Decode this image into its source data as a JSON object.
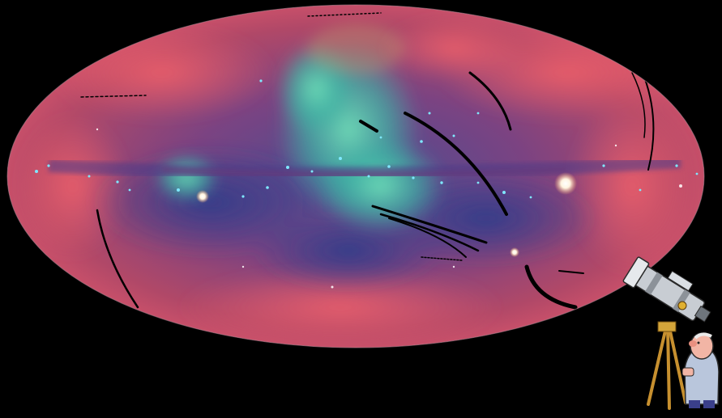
{
  "image": {
    "subject": "all-sky-map",
    "projection": "Aitoff ellipse",
    "background_color": "#000000",
    "palette": {
      "outer_red": "#d24d5e",
      "magenta": "#9a3e78",
      "violet_blue": "#55508e",
      "deep_blue": "#2f3c86",
      "cyan_green": "#5fd6b0",
      "teal": "#3bb5a6",
      "hot_white": "#ffffff",
      "star_cyan": "#7fe8ff"
    },
    "clipart": {
      "subject": "astronomer-with-telescope",
      "icons": [
        "telescope-icon",
        "tripod-icon",
        "astronomer-icon"
      ]
    }
  }
}
